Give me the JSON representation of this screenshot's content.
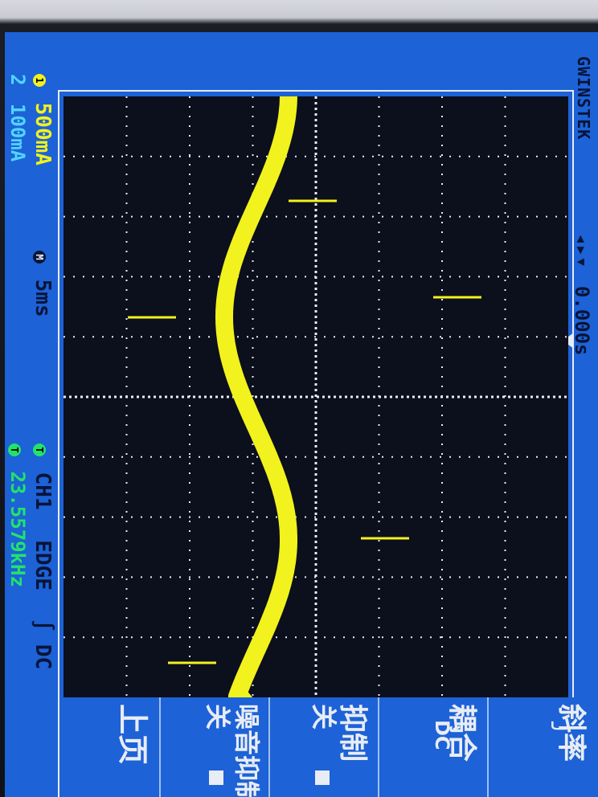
{
  "brand": "GWINSTEK",
  "channels": [
    {
      "badge": "1",
      "scale": "500mA"
    },
    {
      "badge": "2",
      "scale": "100mA"
    }
  ],
  "timebase": {
    "badge": "M",
    "value": "5ms"
  },
  "trigger_offset": "0.000s",
  "trigger": {
    "source_badge": "T",
    "source": "CH1",
    "type": "EDGE",
    "coupling": "DC"
  },
  "frequency": {
    "badge": "T",
    "value": "23.5579kHz"
  },
  "menu": {
    "slope": {
      "title": "斜率",
      "value": "╯"
    },
    "coupling": {
      "title": "耦合",
      "value": "DC"
    },
    "reject": {
      "title": "抑制",
      "value": "关"
    },
    "noise": {
      "title": "噪音抑制",
      "value": "关"
    },
    "page": {
      "title": "上页",
      "value": ""
    }
  },
  "colors": {
    "screen": "#1d62d6",
    "plot_bg": "#0c0f1c",
    "trace": "#f2f21e",
    "grid": "#e8ecf5"
  }
}
